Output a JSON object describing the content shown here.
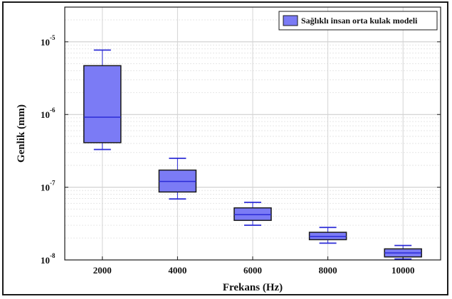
{
  "chart_data": {
    "type": "box",
    "title": "",
    "xlabel": "Frekans (Hz)",
    "ylabel": "Genlik (mm)",
    "yscale": "log",
    "ylim": [
      1e-08,
      3e-05
    ],
    "grid": true,
    "legend_position": "top-right",
    "categories": [
      "2000",
      "4000",
      "6000",
      "8000",
      "10000"
    ],
    "y_tick_values": [
      1e-08,
      1e-07,
      1e-06,
      1e-05
    ],
    "y_tick_labels": [
      {
        "base": "10",
        "exp": "-8"
      },
      {
        "base": "10",
        "exp": "-7"
      },
      {
        "base": "10",
        "exp": "-6"
      },
      {
        "base": "10",
        "exp": "-5"
      }
    ],
    "series": [
      {
        "name": "Sağlıklı insan orta kulak modeli",
        "color": "#7b7bf5",
        "edge_color": "#1a1a1a",
        "whisker_color": "#2b2bd6",
        "boxes": [
          {
            "category": "2000",
            "min": 3.3e-07,
            "q1": 4.1e-07,
            "median": 9.2e-07,
            "q3": 4.7e-06,
            "max": 7.7e-06
          },
          {
            "category": "4000",
            "min": 6.9e-08,
            "q1": 8.6e-08,
            "median": 1.2e-07,
            "q3": 1.72e-07,
            "max": 2.5e-07
          },
          {
            "category": "6000",
            "min": 3e-08,
            "q1": 3.5e-08,
            "median": 4.2e-08,
            "q3": 5.2e-08,
            "max": 6.2e-08
          },
          {
            "category": "8000",
            "min": 1.7e-08,
            "q1": 1.9e-08,
            "median": 2.1e-08,
            "q3": 2.4e-08,
            "max": 2.8e-08
          },
          {
            "category": "10000",
            "min": 1.03e-08,
            "q1": 1.1e-08,
            "median": 1.25e-08,
            "q3": 1.42e-08,
            "max": 1.58e-08
          }
        ]
      }
    ]
  }
}
